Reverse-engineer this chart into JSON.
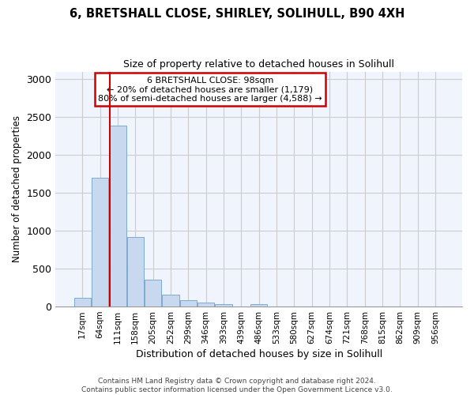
{
  "title": "6, BRETSHALL CLOSE, SHIRLEY, SOLIHULL, B90 4XH",
  "subtitle": "Size of property relative to detached houses in Solihull",
  "xlabel": "Distribution of detached houses by size in Solihull",
  "ylabel": "Number of detached properties",
  "footer_line1": "Contains HM Land Registry data © Crown copyright and database right 2024.",
  "footer_line2": "Contains public sector information licensed under the Open Government Licence v3.0.",
  "bar_color": "#c8d8ee",
  "bar_edge_color": "#7aaad0",
  "grid_color": "#cccccc",
  "annotation_box_color": "#cc0000",
  "vline_color": "#cc0000",
  "annotation_text_line1": "6 BRETSHALL CLOSE: 98sqm",
  "annotation_text_line2": "← 20% of detached houses are smaller (1,179)",
  "annotation_text_line3": "80% of semi-detached houses are larger (4,588) →",
  "categories": [
    "17sqm",
    "64sqm",
    "111sqm",
    "158sqm",
    "205sqm",
    "252sqm",
    "299sqm",
    "346sqm",
    "393sqm",
    "439sqm",
    "486sqm",
    "533sqm",
    "580sqm",
    "627sqm",
    "674sqm",
    "721sqm",
    "768sqm",
    "815sqm",
    "862sqm",
    "909sqm",
    "956sqm"
  ],
  "bar_values": [
    115,
    1700,
    2390,
    920,
    360,
    155,
    80,
    55,
    35,
    0,
    30,
    0,
    0,
    0,
    0,
    0,
    0,
    0,
    0,
    0,
    0
  ],
  "ylim": [
    0,
    3100
  ],
  "yticks": [
    0,
    500,
    1000,
    1500,
    2000,
    2500,
    3000
  ],
  "vline_x_index": 1.55,
  "background_color": "#ffffff",
  "plot_bg_color": "#f0f4fc",
  "figsize": [
    6.0,
    5.0
  ],
  "dpi": 100
}
